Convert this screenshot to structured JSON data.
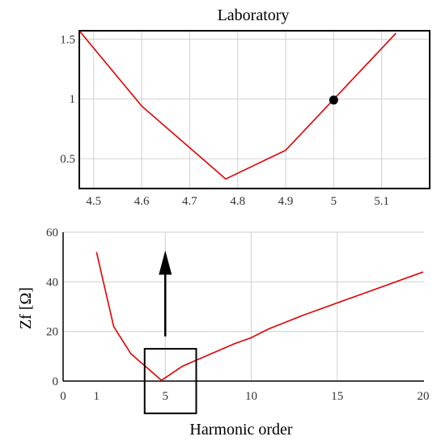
{
  "chart_data": [
    {
      "type": "line",
      "title": "Laboratory",
      "xlabel": "",
      "ylabel": "",
      "xlim": [
        4.47,
        5.2
      ],
      "ylim": [
        0.25,
        1.57
      ],
      "xticks": [
        "4.5",
        "4.6",
        "4.7",
        "4.8",
        "4.9",
        "5",
        "5.1"
      ],
      "yticks": [
        "0.5",
        "1",
        "1.5"
      ],
      "grid": true,
      "series": [
        {
          "color": "#e00000",
          "x": [
            4.47,
            4.6,
            4.775,
            4.9,
            5.13
          ],
          "y": [
            1.57,
            0.94,
            0.33,
            0.57,
            1.55
          ]
        }
      ],
      "marker": {
        "x": 5.0,
        "y": 0.99,
        "color": "#000000"
      }
    },
    {
      "type": "line",
      "title": "",
      "xlabel": "Harmonic order",
      "ylabel": "Zf  [Ω]",
      "xlim": [
        0,
        20
      ],
      "ylim": [
        0,
        60
      ],
      "xticks": [
        "0",
        "1",
        "5",
        "10",
        "15",
        "20"
      ],
      "yticks": [
        "0",
        "20",
        "40",
        "60"
      ],
      "grid": true,
      "series": [
        {
          "color": "#e00000",
          "x": [
            1,
            2,
            3,
            4,
            4.78,
            6,
            7,
            9,
            10,
            11,
            13,
            15,
            17,
            20
          ],
          "y": [
            52,
            22,
            11,
            5,
            0.3,
            6,
            9,
            15,
            17.5,
            21,
            26.5,
            31.5,
            36.5,
            44
          ]
        }
      ],
      "zoom_box": {
        "x": [
          3.8,
          6.8
        ],
        "y": [
          -13,
          13
        ]
      },
      "arrow": {
        "x": 5,
        "y_from": 18,
        "y_to": 52
      }
    }
  ]
}
